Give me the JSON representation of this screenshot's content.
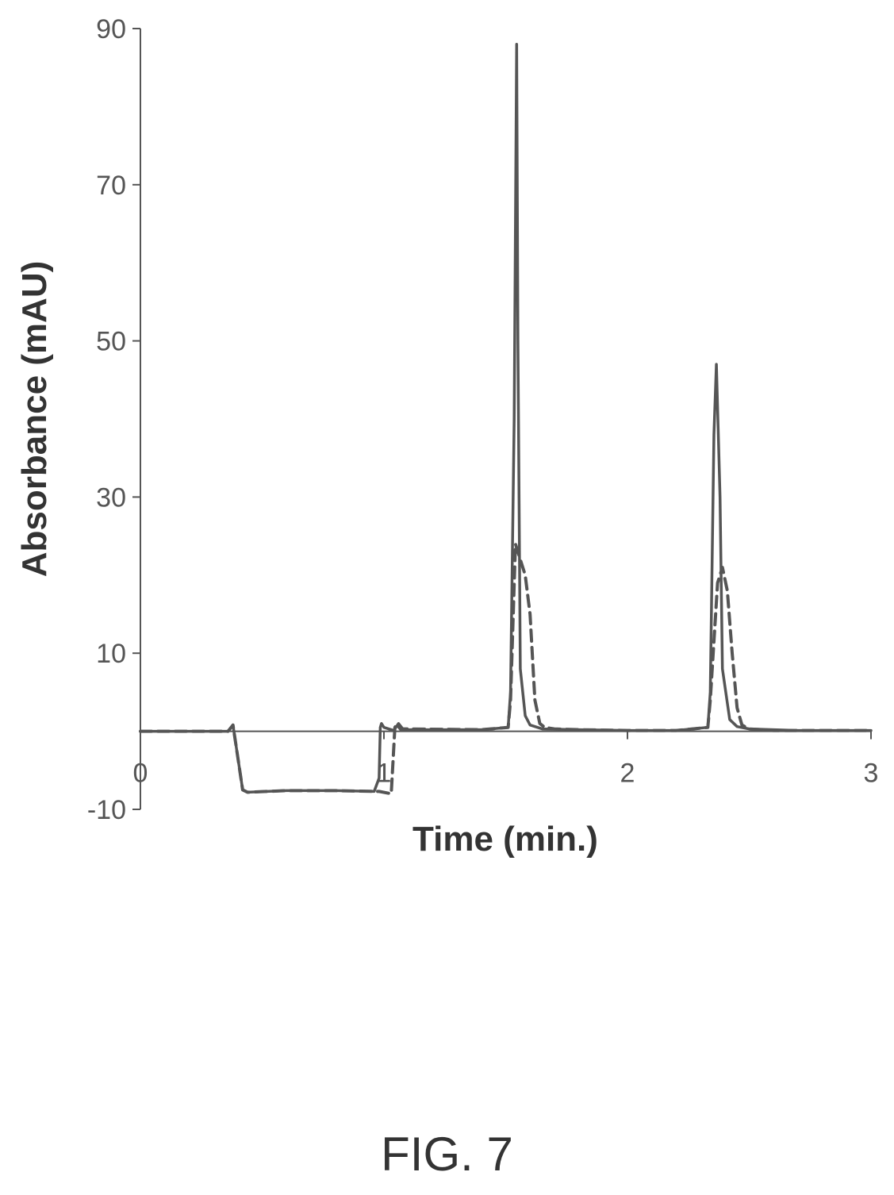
{
  "figure_label": "FIG. 7",
  "chart_data": {
    "type": "line",
    "xlabel": "Time (min.)",
    "ylabel": "Absorbance (mAU)",
    "xlim": [
      0,
      3
    ],
    "ylim": [
      -10,
      90
    ],
    "x_ticks": [
      0,
      1,
      2,
      3
    ],
    "x_tick_labels": [
      "0",
      "1",
      "2",
      "3"
    ],
    "y_ticks": [
      -10,
      10,
      30,
      50,
      70,
      90
    ],
    "y_tick_labels": [
      "-10",
      "10",
      "30",
      "50",
      "70",
      "90"
    ],
    "grid": false,
    "legend": "none",
    "line_color": "#555555",
    "series": [
      {
        "style": "solid",
        "x": [
          0,
          0.36,
          0.38,
          0.42,
          0.44,
          0.6,
          0.8,
          0.96,
          0.98,
          0.985,
          0.99,
          1.0,
          1.04,
          1.06,
          1.08,
          1.4,
          1.51,
          1.52,
          1.535,
          1.545,
          1.55,
          1.56,
          1.58,
          1.6,
          1.65,
          1.8,
          2.0,
          2.2,
          2.33,
          2.34,
          2.355,
          2.365,
          2.38,
          2.39,
          2.42,
          2.45,
          2.5,
          2.7,
          3.0
        ],
        "y": [
          0,
          0,
          0.8,
          -7.5,
          -7.8,
          -7.6,
          -7.6,
          -7.7,
          -6.0,
          0.5,
          1.0,
          0.5,
          0.1,
          1.0,
          0.2,
          0.2,
          0.5,
          5,
          40,
          88,
          50,
          8,
          2,
          0.8,
          0.3,
          0.2,
          0.1,
          0.1,
          0.5,
          5,
          38,
          47,
          30,
          8,
          1.5,
          0.6,
          0.3,
          0.1,
          0.1
        ]
      },
      {
        "style": "dashed",
        "x": [
          0,
          0.36,
          0.38,
          0.42,
          0.44,
          0.6,
          0.8,
          0.98,
          1.03,
          1.045,
          1.055,
          1.06,
          1.07,
          1.08,
          1.4,
          1.51,
          1.52,
          1.54,
          1.56,
          1.58,
          1.6,
          1.62,
          1.64,
          1.66,
          1.7,
          1.8,
          2.0,
          2.2,
          2.33,
          2.34,
          2.37,
          2.39,
          2.41,
          2.43,
          2.45,
          2.47,
          2.5,
          2.6,
          3.0
        ],
        "y": [
          0,
          0,
          0.8,
          -7.5,
          -7.8,
          -7.6,
          -7.6,
          -7.7,
          -8.0,
          0.5,
          1.0,
          0.6,
          0.2,
          0.3,
          0.2,
          0.5,
          4,
          24,
          22,
          20,
          15,
          4,
          1.0,
          0.5,
          0.3,
          0.2,
          0.1,
          0.1,
          0.5,
          4,
          19,
          21,
          18,
          10,
          3,
          0.8,
          0.3,
          0.1,
          0.1
        ]
      }
    ]
  }
}
